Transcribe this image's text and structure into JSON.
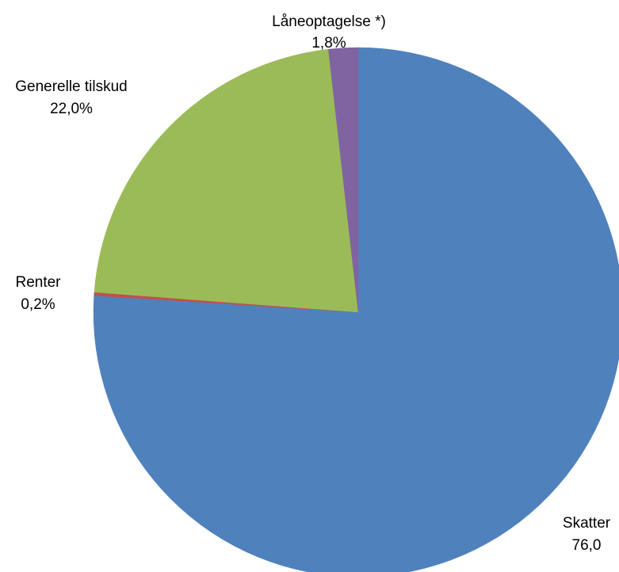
{
  "chart_data": {
    "type": "pie",
    "start_angle_deg": 0,
    "direction": "clockwise",
    "slices": [
      {
        "name": "Skatter",
        "value": 76.0,
        "label_value": "76,0",
        "color": "#4f81bd"
      },
      {
        "name": "Renter",
        "value": 0.2,
        "label_value": "0,2%",
        "color": "#c0504d"
      },
      {
        "name": "Generelle tilskud",
        "value": 22.0,
        "label_value": "22,0%",
        "color": "#9bbb59"
      },
      {
        "name": "Låneoptagelse *)",
        "value": 1.8,
        "label_value": "1,8%",
        "color": "#8064a2"
      }
    ],
    "legend": "none",
    "data_labels": "outside"
  }
}
